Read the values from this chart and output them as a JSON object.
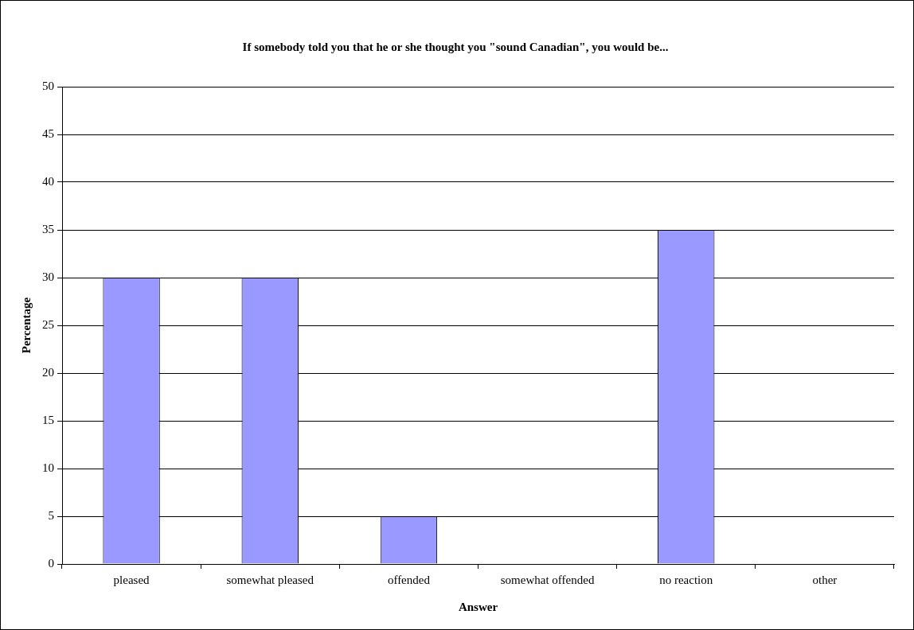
{
  "chart_data": {
    "type": "bar",
    "title": "If somebody told you that he or she thought you \"sound Canadian\", you would be...",
    "xlabel": "Answer",
    "ylabel": "Percentage",
    "categories": [
      "pleased",
      "somewhat pleased",
      "offended",
      "somewhat offended",
      "no reaction",
      "other"
    ],
    "values": [
      30,
      30,
      5,
      0,
      35,
      0
    ],
    "color": "#9999ff",
    "ylim": [
      0,
      50
    ],
    "yticks": [
      0,
      5,
      10,
      15,
      20,
      25,
      30,
      35,
      40,
      45,
      50
    ],
    "grid": "y",
    "legend": false
  }
}
